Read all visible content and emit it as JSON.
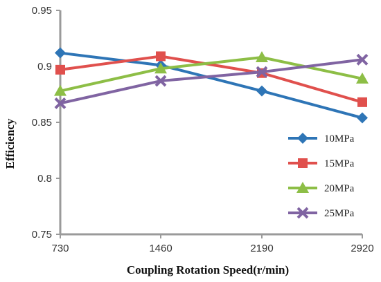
{
  "chart_data": {
    "type": "line",
    "title": "",
    "xlabel": "Coupling Rotation Speed(r/min)",
    "ylabel": "Efficiency",
    "categories": [
      "730",
      "1460",
      "2190",
      "2920"
    ],
    "ylim": [
      0.75,
      0.95
    ],
    "yticks": [
      "0.75",
      "0.8",
      "0.85",
      "0.9",
      "0.95"
    ],
    "grid": false,
    "legend_position": "right",
    "series": [
      {
        "name": "10MPa",
        "values": [
          0.912,
          0.901,
          0.878,
          0.854
        ],
        "color": "#2E75B6",
        "marker": "diamond"
      },
      {
        "name": "15MPa",
        "values": [
          0.897,
          0.909,
          0.894,
          0.868
        ],
        "color": "#E0504D",
        "marker": "square"
      },
      {
        "name": "20MPa",
        "values": [
          0.878,
          0.898,
          0.908,
          0.889
        ],
        "color": "#8DBE46",
        "marker": "triangle"
      },
      {
        "name": "25MPa",
        "values": [
          0.867,
          0.887,
          0.895,
          0.906
        ],
        "color": "#8064A2",
        "marker": "x"
      }
    ]
  }
}
